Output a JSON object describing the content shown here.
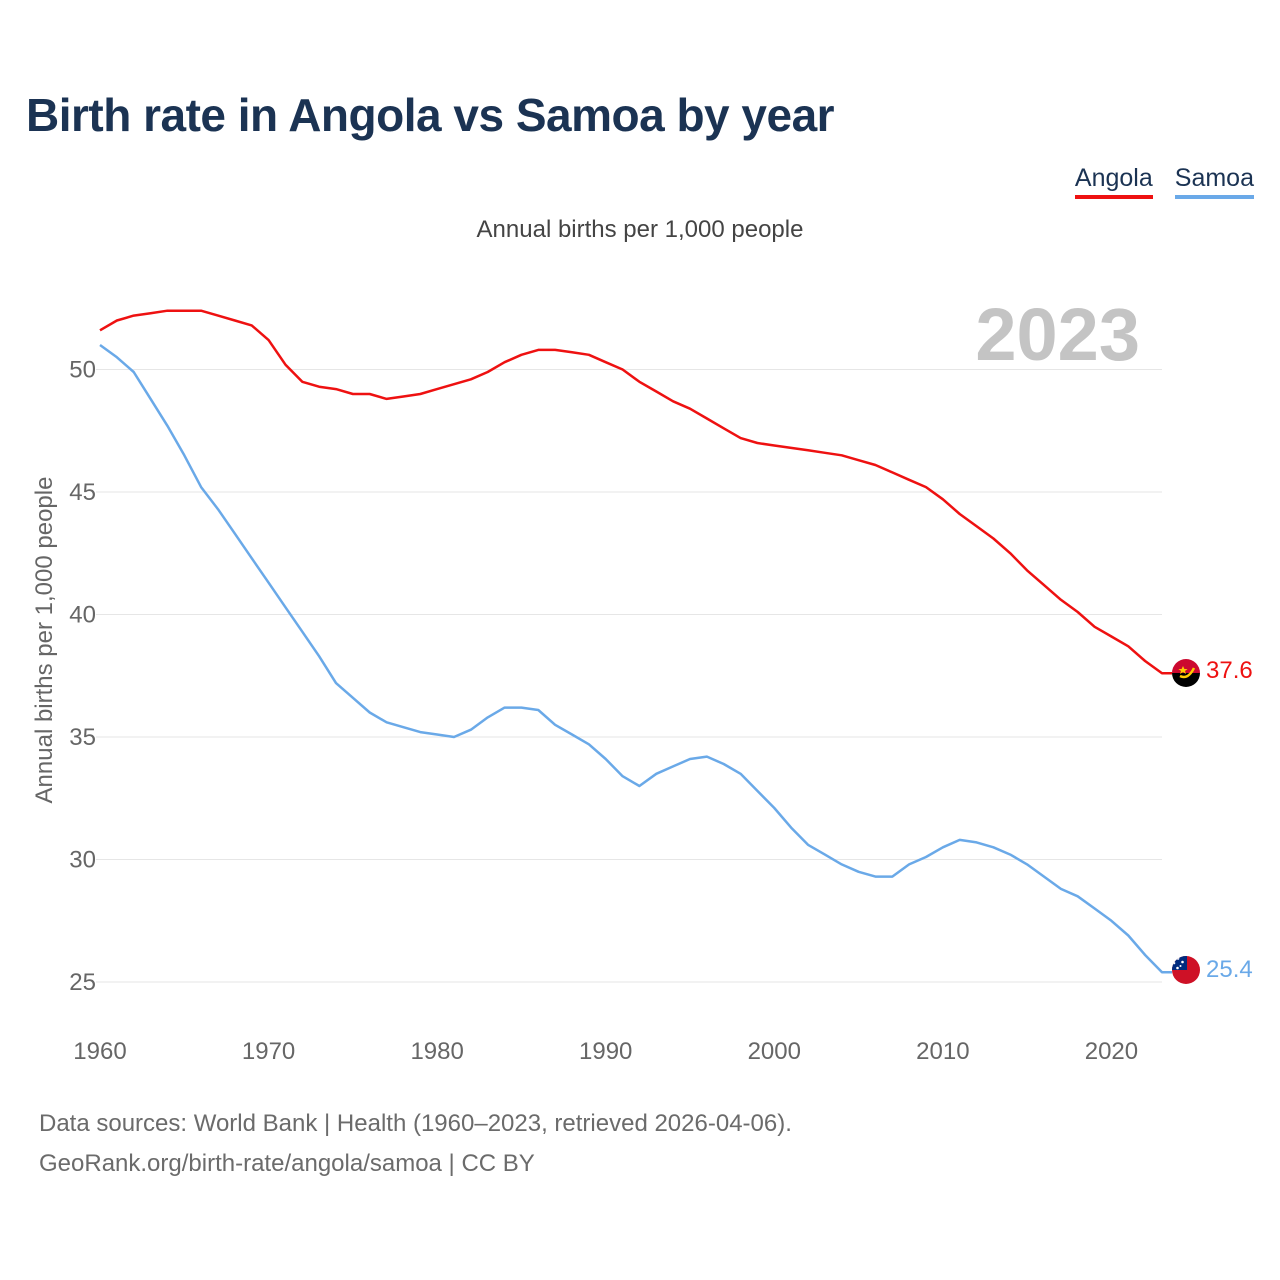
{
  "title": "Birth rate in Angola vs Samoa by year",
  "legend": [
    {
      "label": "Angola",
      "color": "#ee1111"
    },
    {
      "label": "Samoa",
      "color": "#6aa9e8"
    }
  ],
  "subtitle": "Annual births per 1,000 people",
  "year_watermark": "2023",
  "footer": {
    "line1": "Data sources: World Bank | Health (1960–2023, retrieved 2026-04-06).",
    "line2": "GeoRank.org/birth-rate/angola/samoa | CC BY"
  },
  "chart_data": {
    "type": "line",
    "title": "Birth rate in Angola vs Samoa by year",
    "xlabel": "",
    "ylabel": "Annual births per 1,000 people",
    "xlim": [
      1960,
      2023
    ],
    "ylim": [
      23.5,
      53
    ],
    "x_ticks": [
      1960,
      1970,
      1980,
      1990,
      2000,
      2010,
      2020
    ],
    "y_ticks": [
      25,
      30,
      35,
      40,
      45,
      50
    ],
    "grid": true,
    "x": [
      1960,
      1961,
      1962,
      1963,
      1964,
      1965,
      1966,
      1967,
      1968,
      1969,
      1970,
      1971,
      1972,
      1973,
      1974,
      1975,
      1976,
      1977,
      1978,
      1979,
      1980,
      1981,
      1982,
      1983,
      1984,
      1985,
      1986,
      1987,
      1988,
      1989,
      1990,
      1991,
      1992,
      1993,
      1994,
      1995,
      1996,
      1997,
      1998,
      1999,
      2000,
      2001,
      2002,
      2003,
      2004,
      2005,
      2006,
      2007,
      2008,
      2009,
      2010,
      2011,
      2012,
      2013,
      2014,
      2015,
      2016,
      2017,
      2018,
      2019,
      2020,
      2021,
      2022,
      2023
    ],
    "series": [
      {
        "name": "Angola",
        "color": "#ee1111",
        "end_label": "37.6",
        "values": [
          51.6,
          52.0,
          52.2,
          52.3,
          52.4,
          52.4,
          52.4,
          52.2,
          52.0,
          51.8,
          51.2,
          50.2,
          49.5,
          49.3,
          49.2,
          49.0,
          49.0,
          48.8,
          48.9,
          49.0,
          49.2,
          49.4,
          49.6,
          49.9,
          50.3,
          50.6,
          50.8,
          50.8,
          50.7,
          50.6,
          50.3,
          50.0,
          49.5,
          49.1,
          48.7,
          48.4,
          48.0,
          47.6,
          47.2,
          47.0,
          46.9,
          46.8,
          46.7,
          46.6,
          46.5,
          46.3,
          46.1,
          45.8,
          45.5,
          45.2,
          44.7,
          44.1,
          43.6,
          43.1,
          42.5,
          41.8,
          41.2,
          40.6,
          40.1,
          39.5,
          39.1,
          38.7,
          38.1,
          37.6
        ]
      },
      {
        "name": "Samoa",
        "color": "#6aa9e8",
        "end_label": "25.4",
        "values": [
          51.0,
          50.5,
          49.9,
          48.8,
          47.7,
          46.5,
          45.2,
          44.3,
          43.3,
          42.3,
          41.3,
          40.3,
          39.3,
          38.3,
          37.2,
          36.6,
          36.0,
          35.6,
          35.4,
          35.2,
          35.1,
          35.0,
          35.3,
          35.8,
          36.2,
          36.2,
          36.1,
          35.5,
          35.1,
          34.7,
          34.1,
          33.4,
          33.0,
          33.5,
          33.8,
          34.1,
          34.2,
          33.9,
          33.5,
          32.8,
          32.1,
          31.3,
          30.6,
          30.2,
          29.8,
          29.5,
          29.3,
          29.3,
          29.8,
          30.1,
          30.5,
          30.8,
          30.7,
          30.5,
          30.2,
          29.8,
          29.3,
          28.8,
          28.5,
          28.0,
          27.5,
          26.9,
          26.1,
          25.4
        ]
      }
    ]
  }
}
